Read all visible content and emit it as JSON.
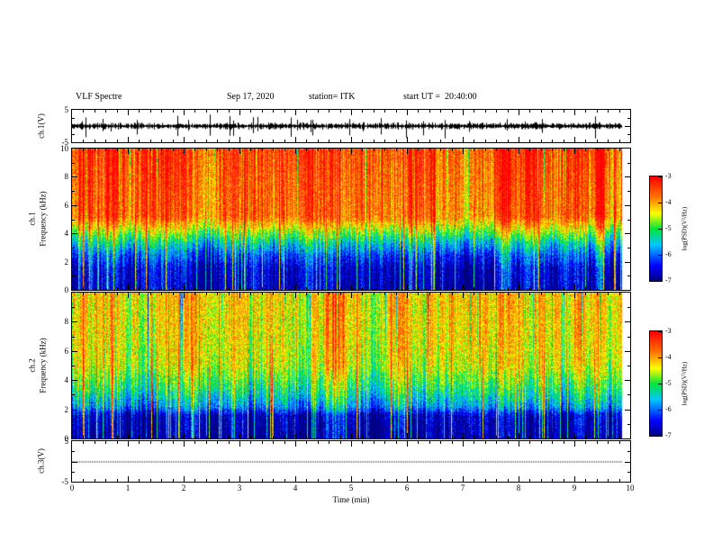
{
  "header": {
    "title": "VLF Spectre",
    "date": "Sep 17, 2020",
    "station": "station= ITK",
    "start_ut": "start UT =  20:40:00"
  },
  "xaxis": {
    "label": "Time (min)",
    "range": [
      0,
      10
    ],
    "major_ticks": [
      0,
      1,
      2,
      3,
      4,
      5,
      6,
      7,
      8,
      9,
      10
    ],
    "minor_step": 0.2,
    "data_end_fraction": 0.985
  },
  "colormap": {
    "range": [
      -7,
      -3
    ],
    "positions": [
      0,
      0.15,
      0.35,
      0.5,
      0.65,
      0.8,
      1
    ],
    "colors": [
      "#000080",
      "#0000ff",
      "#00c8ff",
      "#00e43c",
      "#ffff00",
      "#ff7800",
      "#ff0000"
    ]
  },
  "colorbar": {
    "label": "log(PSD)(V²/Hz)",
    "ticks": [
      -3,
      -4,
      -5,
      -6,
      -7
    ]
  },
  "chart_data": [
    {
      "type": "line",
      "name": "ch1-waveform",
      "ylabel": "ch.1(V)",
      "ylim": [
        -5,
        5
      ],
      "ytick_labels": [
        5,
        -5
      ],
      "style": "noisy",
      "seed": 11,
      "description": "Dense impulsive VLF waveform around 0 V with frequent sferic spikes reaching ±5 V over 0-10 min"
    },
    {
      "type": "heatmap",
      "name": "ch1-spectrogram",
      "ylabel_line1": "ch.1",
      "ylabel_line2": "Frequency (kHz)",
      "ylim": [
        0,
        10
      ],
      "ytick_labels": [
        10,
        8,
        6,
        4,
        2,
        0
      ],
      "profile_points": [
        [
          0,
          -6.8
        ],
        [
          1.5,
          -6.7
        ],
        [
          2.5,
          -6.2
        ],
        [
          3.5,
          -5.4
        ],
        [
          4.5,
          -4.4
        ],
        [
          5.2,
          -3.8
        ],
        [
          10,
          -3.5
        ]
      ],
      "impulse_prob": 0.12,
      "drop_prob": 0.06,
      "seed": 42,
      "description": "PSD ~10^-3.5 V²/Hz (red) above ~5 kHz, green transition 3-5 kHz, ~10^-6.8 (dark blue) below 2.5 kHz, dense broadband vertical sferic striations"
    },
    {
      "type": "heatmap",
      "name": "ch2-spectrogram",
      "ylabel_line1": "ch.2",
      "ylabel_line2": "Frequency (kHz)",
      "ylim": [
        0,
        10
      ],
      "ytick_labels": [
        8,
        6,
        4,
        2,
        0
      ],
      "profile_points": [
        [
          0,
          -6.9
        ],
        [
          1.6,
          -6.7
        ],
        [
          2.2,
          -5.8
        ],
        [
          3.5,
          -5.1
        ],
        [
          5,
          -4.5
        ],
        [
          7,
          -4.3
        ],
        [
          10,
          -4.2
        ]
      ],
      "impulse_prob": 0.12,
      "drop_prob": 0.05,
      "seed": 77,
      "description": "Yellow-orange background ~10^-4.2 above 5 kHz with red streaks, green 2-5 kHz, dark blue band below 2 kHz with broadband striations"
    },
    {
      "type": "line",
      "name": "ch3-waveform",
      "ylabel": "ch.3(V)",
      "ylim": [
        -5,
        5
      ],
      "ytick_labels": [
        5,
        -5
      ],
      "style": "flat",
      "seed": 5,
      "description": "Flat dotted trace at 0 V"
    }
  ]
}
